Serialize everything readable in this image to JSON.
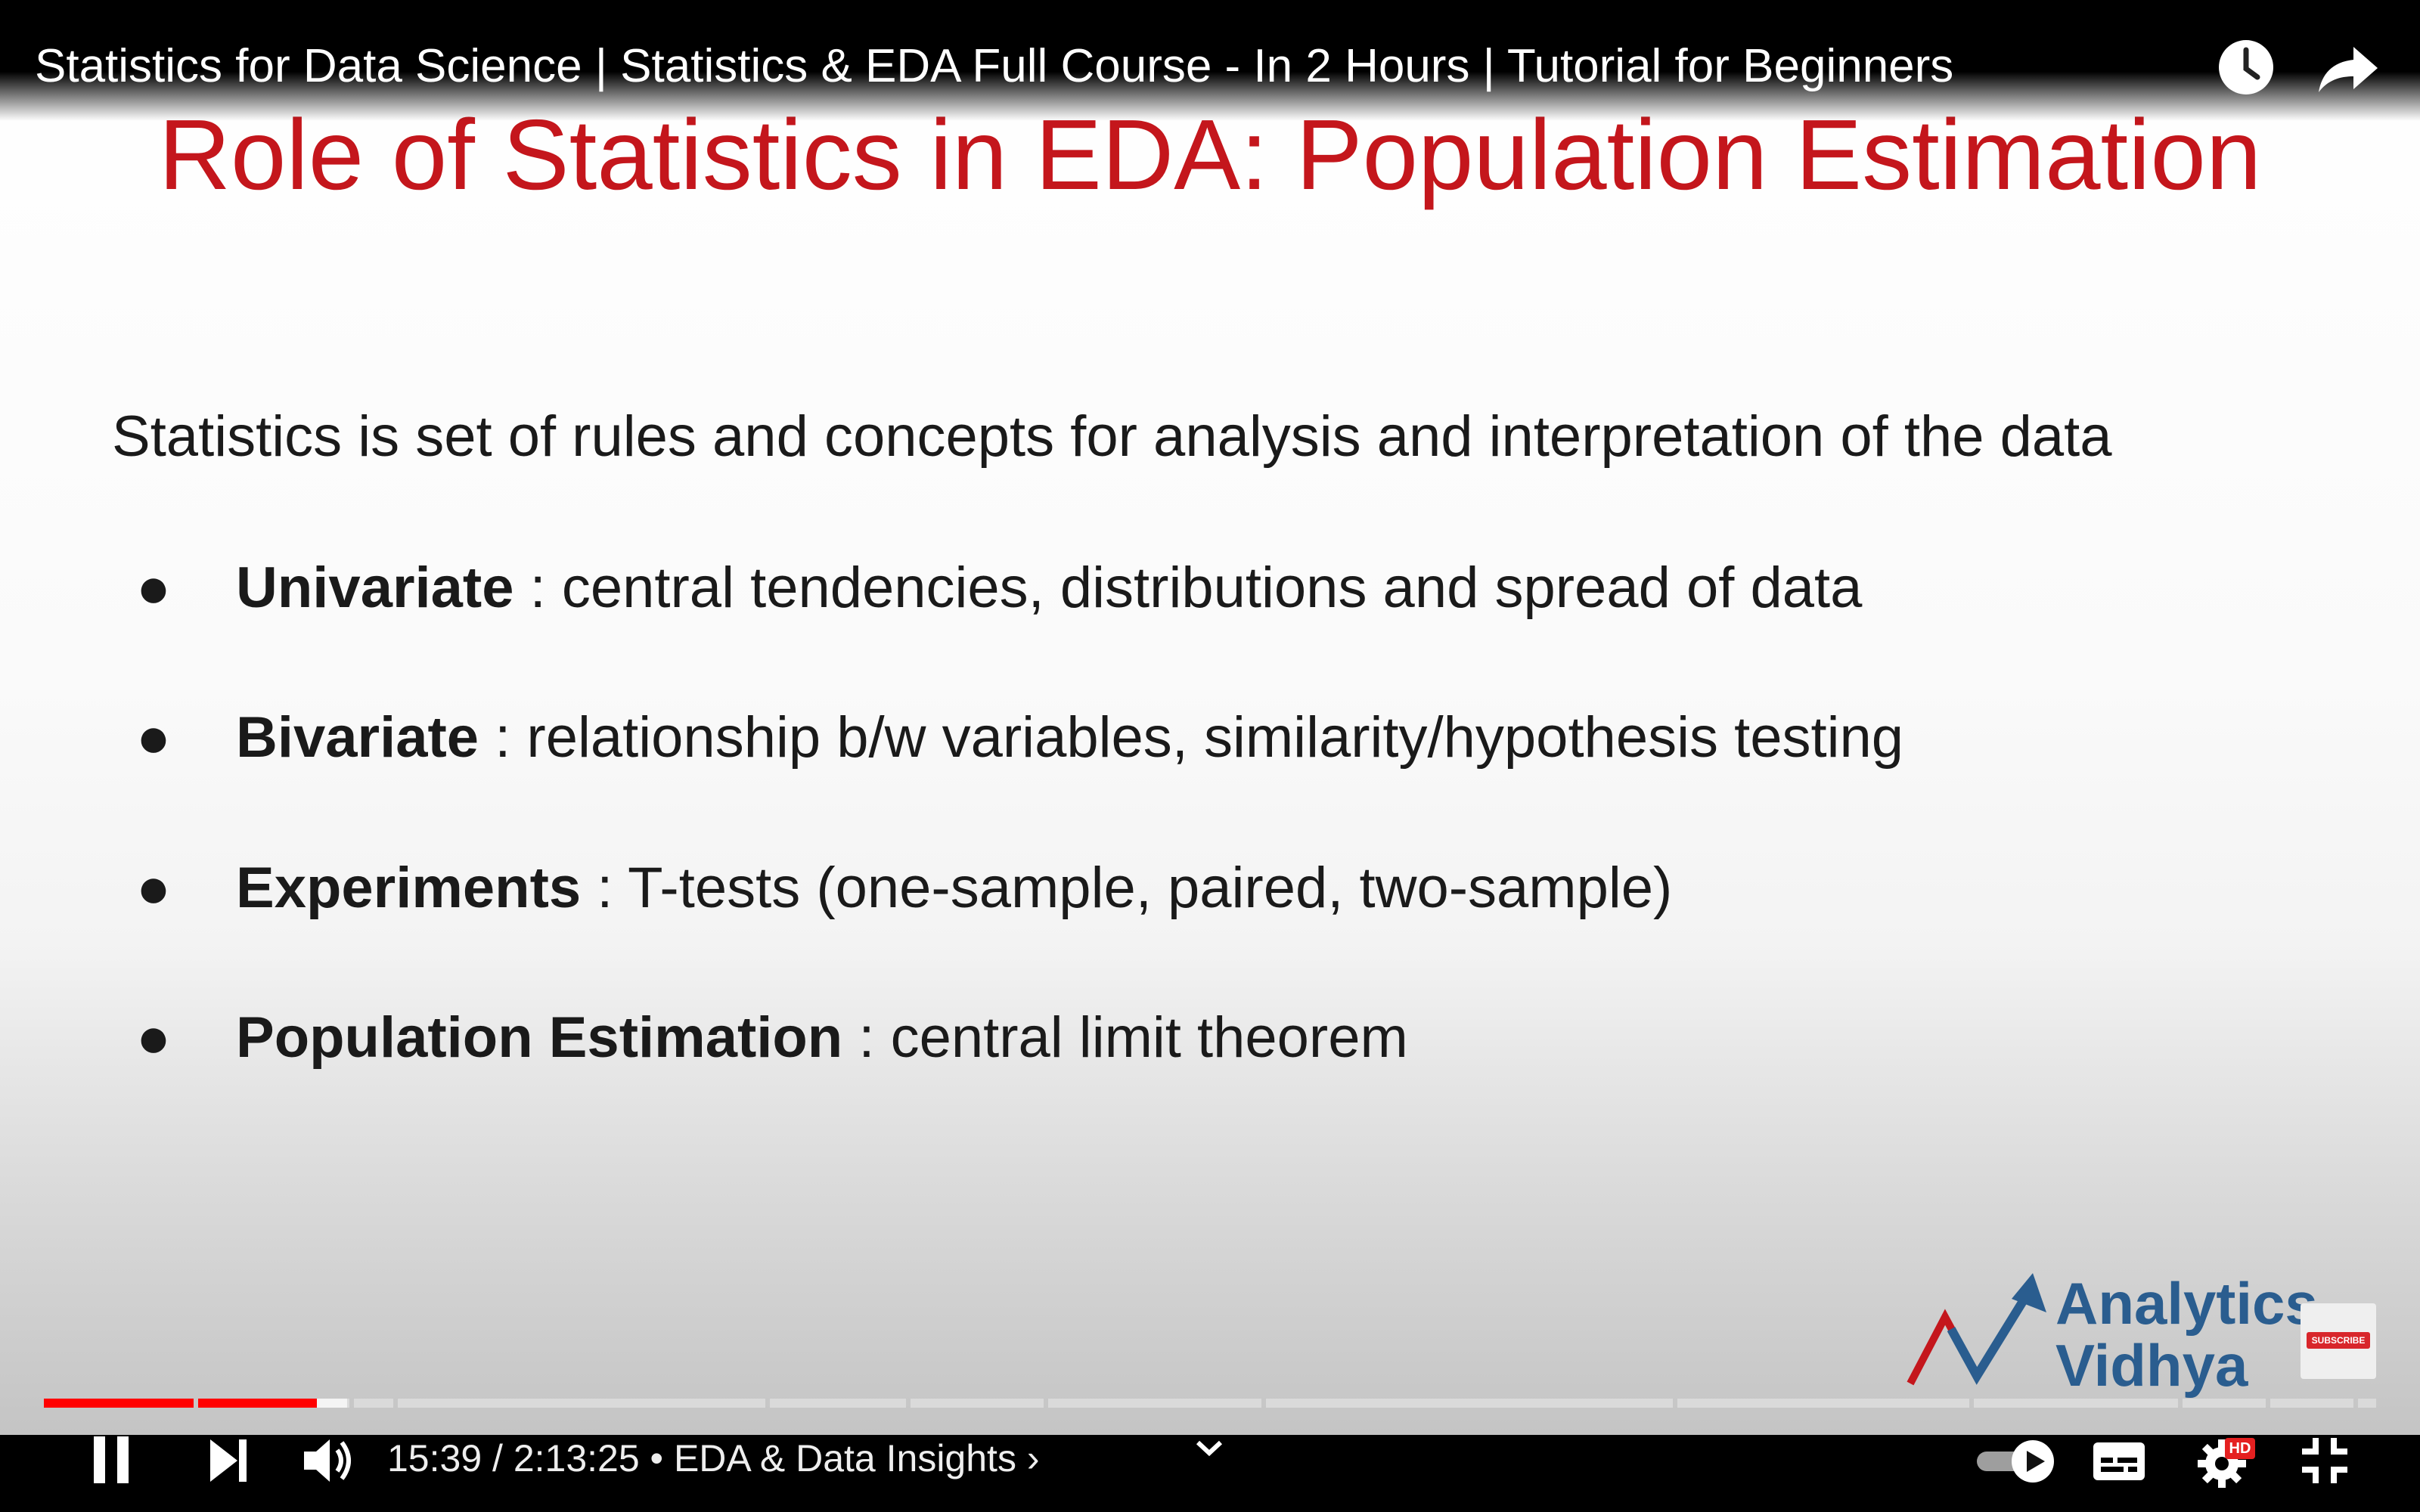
{
  "player": {
    "video_title": "Statistics for Data Science | Statistics & EDA Full Course - In 2 Hours | Tutorial for Beginners",
    "time_current": "15:39",
    "time_total": "2:13:25",
    "time_separator": " / ",
    "chapter": "EDA & Data Insights",
    "chapter_prefix": " • ",
    "chapter_chevron": "›",
    "progress_played_fraction": 0.117,
    "progress_buffered_fraction": 0.13,
    "hd_badge": "HD",
    "colors": {
      "accent": "#ff0000",
      "title_red": "#c4161c",
      "logo_blue": "#2a5d8f"
    },
    "icons": [
      "watch-later-icon",
      "share-icon",
      "pause-icon",
      "next-icon",
      "volume-icon",
      "chevron-down-icon",
      "autoplay-toggle-icon",
      "subtitles-icon",
      "settings-icon",
      "exit-fullscreen-icon"
    ]
  },
  "slide": {
    "title": "Role of Statistics in EDA: Population Estimation",
    "intro": "Statistics is set of rules and concepts for analysis and interpretation of the data",
    "bullets": [
      {
        "term": "Univariate",
        "text": " : central tendencies, distributions and spread of data"
      },
      {
        "term": "Bivariate",
        "text": " : relationship b/w variables, similarity/hypothesis testing"
      },
      {
        "term": "Experiments",
        "text": " : T-tests (one-sample, paired, two-sample)"
      },
      {
        "term": "Population Estimation",
        "text": " : central limit theorem"
      }
    ],
    "bullet_glyph": "●",
    "logo_line1": "Analytics",
    "logo_line2": "Vidhya",
    "subscribe_watermark": "SUBSCRIBE"
  }
}
